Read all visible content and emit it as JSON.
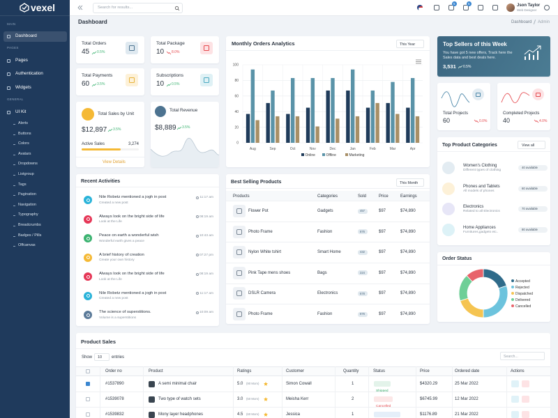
{
  "sidebar": {
    "logo": "vexel",
    "sections": [
      {
        "title": "MAIN",
        "items": [
          "Dashboard"
        ]
      },
      {
        "title": "PAGES",
        "items": [
          "Pages",
          "Authentication",
          "Widgets"
        ]
      },
      {
        "title": "GENERAL",
        "items": [
          "UI Kit"
        ]
      }
    ],
    "submenu": [
      "Alerts",
      "Buttons",
      "Colors",
      "Avatars",
      "Dropdowns",
      "Listgroup",
      "Tags",
      "Pagination",
      "Navigation",
      "Typography",
      "Breadcrumbs",
      "Badges / Pills",
      "Offcanvas"
    ]
  },
  "header": {
    "search_placeholder": "Search for results...",
    "cart_badge": "5",
    "bell_badge": "5",
    "user_name": "Json Taylor",
    "user_role": "Web Designer"
  },
  "page": {
    "title": "Dashboard",
    "breadcrumb": [
      "Dashboard",
      "Admin"
    ]
  },
  "stats": [
    {
      "label": "Total Orders",
      "value": "45",
      "change": "0.5%",
      "trend": "up"
    },
    {
      "label": "Total Package",
      "value": "10",
      "change": "8.0%",
      "trend": "down"
    },
    {
      "label": "Total Payments",
      "value": "60",
      "change": "3.5%",
      "trend": "up"
    },
    {
      "label": "Subscriptions",
      "value": "10",
      "change": "0.5%",
      "trend": "up"
    }
  ],
  "sales_unit": {
    "title": "Total Sales by Unit",
    "value": "$12,897",
    "change": "3.5%",
    "active_label": "Active Sales",
    "active_value": "3,274",
    "link": "View Details"
  },
  "revenue": {
    "title": "Total Revenue",
    "value": "$8,889",
    "change": "3.5%"
  },
  "chart_data": [
    {
      "type": "bar",
      "title": "Monthly Orders Analytics",
      "filter": "This Year",
      "categories": [
        "Aug",
        "Sep",
        "Oct",
        "Nov",
        "Dec",
        "Jan",
        "Feb",
        "Mar",
        "Apr"
      ],
      "series": [
        {
          "name": "Online",
          "color": "#1f3b5a",
          "values": [
            37,
            51,
            37,
            45,
            67,
            67,
            45,
            51,
            45
          ]
        },
        {
          "name": "Offline",
          "color": "#5a93a8",
          "values": [
            94,
            67,
            83,
            83,
            83,
            94,
            67,
            78,
            83
          ]
        },
        {
          "name": "Marketing",
          "color": "#a88f66",
          "values": [
            29,
            34,
            34,
            21,
            31,
            34,
            51,
            37,
            34
          ]
        }
      ],
      "ylim": [
        0,
        100
      ],
      "yticks": [
        0,
        20,
        40,
        60,
        80,
        100
      ],
      "grid": true
    },
    {
      "type": "doughnut",
      "title": "Order Status",
      "labels": [
        "Accepted",
        "Rejected",
        "Dispatched",
        "Delivered",
        "Cancelled"
      ],
      "values": [
        20,
        30,
        20,
        18,
        12
      ],
      "colors": [
        "#2f6b8a",
        "#6cc3dd",
        "#f5c451",
        "#6fcf97",
        "#e8636b"
      ]
    }
  ],
  "top_sellers": {
    "title": "Top Sellers of this Week",
    "text": "You have got 5 new offers, Track here the Sales data and best deals here.",
    "value": "3,531",
    "change": "0.5%"
  },
  "projects": [
    {
      "label": "Total Projects",
      "value": "60",
      "change": "0.0%"
    },
    {
      "label": "Completed Projects",
      "value": "40",
      "change": "4.0%"
    }
  ],
  "categories": {
    "title": "Top Product Categories",
    "action": "View all",
    "items": [
      {
        "name": "Women's Clothing",
        "desc": "Different types of clothing",
        "badge": "40 available"
      },
      {
        "name": "Phones and Tablets",
        "desc": "All models of phones",
        "badge": "60 available"
      },
      {
        "name": "Electronics",
        "desc": "Related to all Electronics",
        "badge": "70 available"
      },
      {
        "name": "Home Appliances",
        "desc": "Furnitures,gadgets etc..",
        "badge": "80 available"
      }
    ]
  },
  "activities": {
    "title": "Recent Activities",
    "items": [
      {
        "text": "Nile Robetz mentioned a jogh in post",
        "sub": "Created a new post",
        "time": "11:17 am"
      },
      {
        "text": "Always look on the bright side of life",
        "sub": "Look at the Life",
        "time": "08:19 am"
      },
      {
        "text": "Peace on earth a wonderful wish",
        "sub": "Wonderful earth gives a peace",
        "time": "10:43 am"
      },
      {
        "text": "A brief history of creation",
        "sub": "Create your own history",
        "time": "07:27 pm"
      },
      {
        "text": "Always look on the bright side of life",
        "sub": "Look at the Life",
        "time": "08:19 am"
      },
      {
        "text": "Nile Robetz mentioned a jogh in post",
        "sub": "Created a new post",
        "time": "11:17 am"
      },
      {
        "text": "The science of superstitions.",
        "sub": "Volume is a superstitions",
        "time": "10:09 am"
      }
    ]
  },
  "best_selling": {
    "title": "Best Selling Products",
    "filter": "This Month",
    "columns": [
      "Products",
      "Categories",
      "Sold",
      "Price",
      "Earnings"
    ],
    "rows": [
      [
        "Flower Pot",
        "Gadgets",
        "457",
        "$97",
        "$74,890"
      ],
      [
        "Photo Frame",
        "Fashion",
        "876",
        "$97",
        "$74,890"
      ],
      [
        "Nylon White tshirt",
        "Smart Home",
        "432",
        "$97",
        "$74,890"
      ],
      [
        "Pink Tape mens shoes",
        "Bags",
        "224",
        "$97",
        "$74,890"
      ],
      [
        "DSLR Camera",
        "Electronics",
        "678",
        "$97",
        "$74,890"
      ],
      [
        "Photo Frame",
        "Fashion",
        "876",
        "$97",
        "$74,890"
      ]
    ]
  },
  "product_sales": {
    "title": "Product Sales",
    "show": "Show",
    "entries_count": "10",
    "entries": "entries",
    "search": "Search...",
    "columns": [
      "Order no",
      "Product",
      "Ratings",
      "Customer",
      "Quantity",
      "Status",
      "Price",
      "Ordered date",
      "Actions"
    ],
    "rows": [
      {
        "order": "#1537890",
        "product": "A semi minimal chair",
        "rating": "5.0",
        "reviews": "(90 Mom)",
        "customer": "Simon Cowall",
        "qty": "1",
        "status": "Shipped",
        "status_color": "#2fa864",
        "price": "$4320.29",
        "date": "25 Mar 2022"
      },
      {
        "order": "#1539078",
        "product": "Two type of watch sets",
        "rating": "3.0",
        "reviews": "(50 Mom)",
        "customer": "Meisha Kerr",
        "qty": "2",
        "status": "Cancelled",
        "status_color": "#e5484d",
        "price": "$6745.99",
        "date": "12 Mar 2022"
      },
      {
        "order": "#1539832",
        "product": "Mony layer headphones",
        "rating": "4.5",
        "reviews": "(60 Mom)",
        "customer": "Jessica",
        "qty": "1",
        "status": "Under Process",
        "status_color": "#3a86d0",
        "price": "$1176.89",
        "date": "21 Mar 2022"
      }
    ]
  }
}
